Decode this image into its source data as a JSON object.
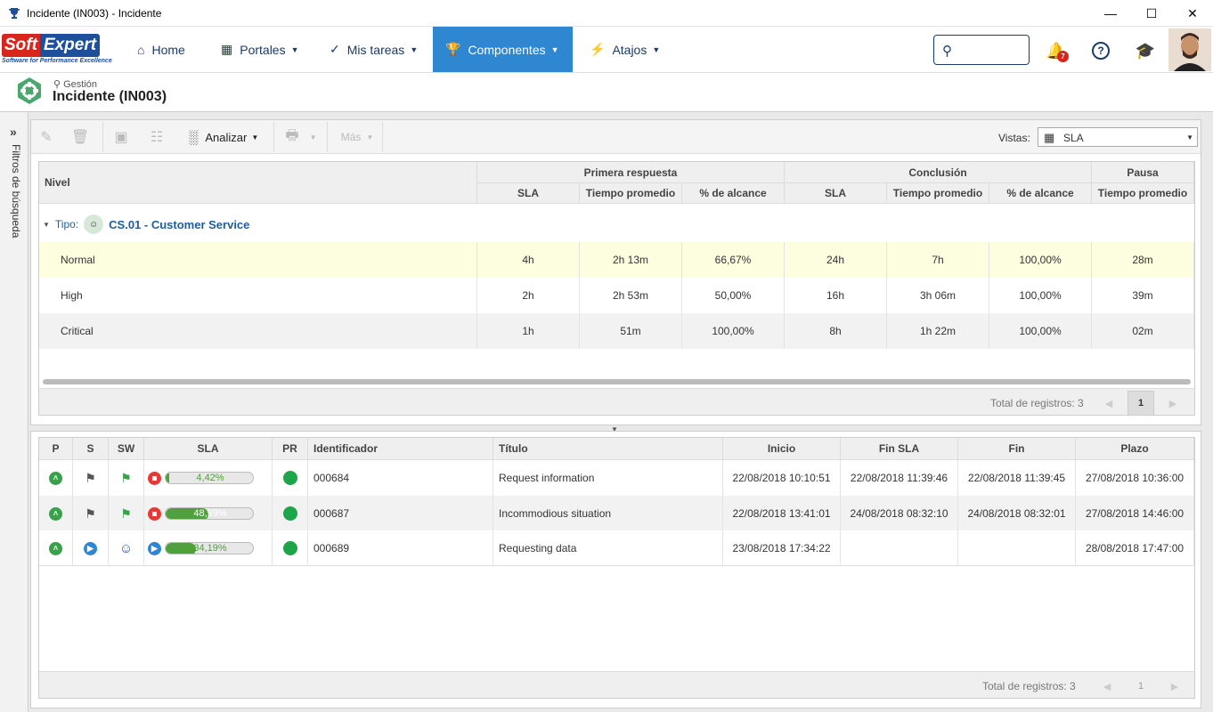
{
  "window": {
    "title": "Incidente (IN003) - Incidente"
  },
  "nav": {
    "logo_soft": "Soft",
    "logo_expert": "Expert",
    "logo_tag": "Software for Performance Excellence",
    "items": [
      {
        "label": "Home"
      },
      {
        "label": "Portales"
      },
      {
        "label": "Mis tareas"
      },
      {
        "label": "Componentes"
      },
      {
        "label": "Atajos"
      }
    ],
    "notif_count": "7",
    "accent": "#2f86d1"
  },
  "crumb": {
    "path": "Gestión",
    "title": "Incidente (IN003)"
  },
  "sidebar": {
    "label": "Filtros de búsqueda"
  },
  "toolbar": {
    "analizar": "Analizar",
    "mas": "Más",
    "vistas_label": "Vistas:",
    "vistas_value": "SLA"
  },
  "grid1": {
    "col_nivel": "Nivel",
    "group_primera": "Primera respuesta",
    "group_conclusion": "Conclusión",
    "group_pausa": "Pausa",
    "sub": [
      "SLA",
      "Tiempo promedio",
      "% de alcance",
      "SLA",
      "Tiempo promedio",
      "% de alcance",
      "Tiempo promedio"
    ],
    "group_label": "Tipo:",
    "group_name": "CS.01 - Customer Service",
    "rows": [
      {
        "nivel": "Normal",
        "v": [
          "4h",
          "2h 13m",
          "66,67%",
          "24h",
          "7h",
          "100,00%",
          "28m"
        ]
      },
      {
        "nivel": "High",
        "v": [
          "2h",
          "2h 53m",
          "50,00%",
          "16h",
          "3h 06m",
          "100,00%",
          "39m"
        ]
      },
      {
        "nivel": "Critical",
        "v": [
          "1h",
          "51m",
          "100,00%",
          "8h",
          "1h 22m",
          "100,00%",
          "02m"
        ]
      }
    ],
    "total": "Total de registros: 3",
    "page": "1"
  },
  "grid2": {
    "headers": [
      "P",
      "S",
      "SW",
      "SLA",
      "PR",
      "Identificador",
      "Título",
      "Inicio",
      "Fin SLA",
      "Fin",
      "Plazo"
    ],
    "rows": [
      {
        "sla_pct": "4,42%",
        "sla_value": 4.42,
        "id": "000684",
        "titulo": "Request information",
        "inicio": "22/08/2018 10:10:51",
        "fin_sla": "22/08/2018 11:39:46",
        "fin": "22/08/2018 11:39:45",
        "plazo": "27/08/2018 10:36:00"
      },
      {
        "sla_pct": "48,99%",
        "sla_value": 48.99,
        "id": "000687",
        "titulo": "Incommodious situation",
        "inicio": "22/08/2018 13:41:01",
        "fin_sla": "24/08/2018 08:32:10",
        "fin": "24/08/2018 08:32:01",
        "plazo": "27/08/2018 14:46:00"
      },
      {
        "sla_pct": "34,19%",
        "sla_value": 34.19,
        "id": "000689",
        "titulo": "Requesting data",
        "inicio": "23/08/2018 17:34:22",
        "fin_sla": "",
        "fin": "",
        "plazo": "28/08/2018 17:47:00"
      }
    ],
    "total": "Total de registros: 3",
    "page": "1"
  }
}
